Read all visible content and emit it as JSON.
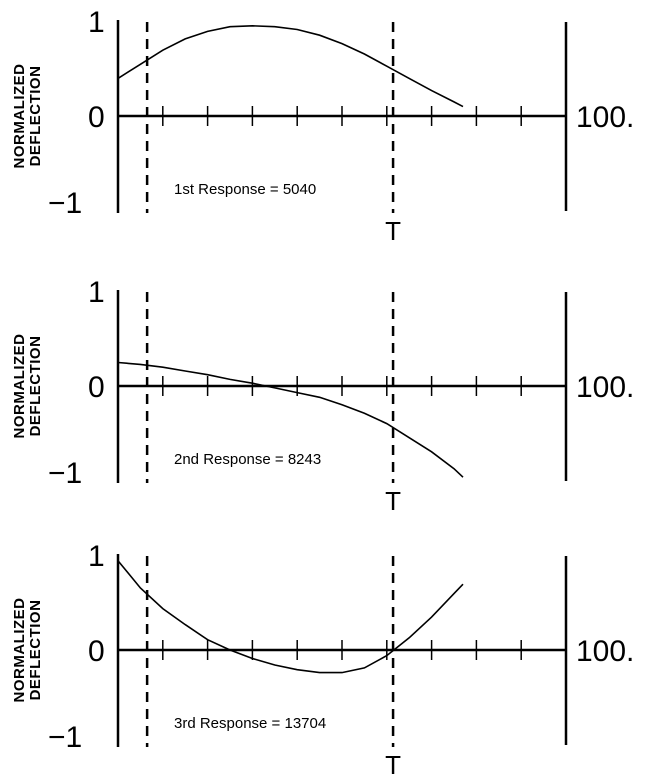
{
  "colors": {
    "ink": "#000000",
    "axis": "#222222",
    "background": "#ffffff"
  },
  "chart_data": [
    {
      "type": "line",
      "ylabel": [
        "NORMALIZED",
        "DEFLECTION"
      ],
      "yticks": [
        "1",
        "0",
        "-1"
      ],
      "ylim": [
        -1,
        1
      ],
      "xlim": [
        0,
        100
      ],
      "right_label": "100.",
      "marker_label": "T",
      "dashed_lines_x": [
        6.5,
        61.4
      ],
      "annotation": "1st Response = 5040",
      "series": [
        {
          "x": [
            0,
            5,
            10,
            15,
            20,
            25,
            30,
            35,
            40,
            45,
            50,
            55,
            60,
            65,
            70,
            75,
            77
          ],
          "y": [
            0.4,
            0.55,
            0.7,
            0.82,
            0.9,
            0.95,
            0.96,
            0.95,
            0.92,
            0.86,
            0.77,
            0.66,
            0.53,
            0.4,
            0.27,
            0.15,
            0.1
          ]
        }
      ]
    },
    {
      "type": "line",
      "ylabel": [
        "NORMALIZED",
        "DEFLECTION"
      ],
      "yticks": [
        "1",
        "0",
        "-1"
      ],
      "ylim": [
        -1,
        1
      ],
      "xlim": [
        0,
        100
      ],
      "right_label": "100.",
      "marker_label": "T",
      "dashed_lines_x": [
        6.5,
        61.4
      ],
      "annotation": "2nd Response = 8243",
      "series": [
        {
          "x": [
            0,
            5,
            10,
            15,
            20,
            25,
            30,
            35,
            40,
            45,
            50,
            55,
            60,
            65,
            70,
            75,
            77
          ],
          "y": [
            0.25,
            0.23,
            0.2,
            0.16,
            0.12,
            0.07,
            0.03,
            -0.02,
            -0.07,
            -0.12,
            -0.2,
            -0.29,
            -0.4,
            -0.55,
            -0.7,
            -0.88,
            -0.97
          ]
        }
      ]
    },
    {
      "type": "line",
      "ylabel": [
        "NORMALIZED",
        "DEFLECTION"
      ],
      "yticks": [
        "1",
        "0",
        "-1"
      ],
      "ylim": [
        -1,
        1
      ],
      "xlim": [
        0,
        100
      ],
      "right_label": "100.",
      "marker_label": "T",
      "dashed_lines_x": [
        6.5,
        61.4
      ],
      "annotation": "3rd Response = 13704",
      "series": [
        {
          "x": [
            0,
            5,
            10,
            15,
            20,
            25,
            30,
            35,
            40,
            45,
            50,
            55,
            60,
            65,
            70,
            75,
            77
          ],
          "y": [
            0.95,
            0.66,
            0.44,
            0.27,
            0.11,
            0.0,
            -0.09,
            -0.16,
            -0.21,
            -0.24,
            -0.24,
            -0.19,
            -0.06,
            0.13,
            0.35,
            0.6,
            0.7
          ]
        }
      ]
    }
  ]
}
